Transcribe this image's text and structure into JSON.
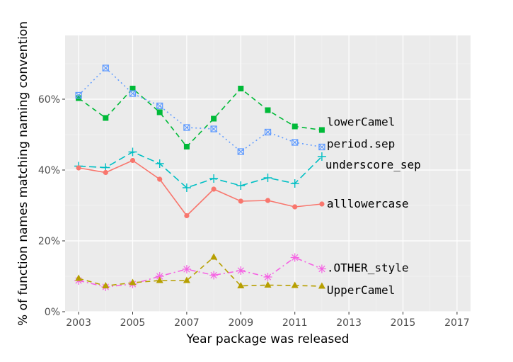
{
  "chart_data": {
    "type": "line",
    "title": "",
    "xlabel": "Year package was released",
    "ylabel": "% of function names matching naming convention",
    "xlim": [
      2002.5,
      2017.5
    ],
    "ylim": [
      0,
      78
    ],
    "x_ticks": [
      2003,
      2005,
      2007,
      2009,
      2011,
      2013,
      2015,
      2017
    ],
    "x_tick_labels": [
      "2003",
      "2005",
      "2007",
      "2009",
      "2011",
      "2013",
      "2015",
      "2017"
    ],
    "y_ticks": [
      0,
      20,
      40,
      60
    ],
    "y_tick_labels": [
      "0%",
      "20%",
      "40%",
      "60%"
    ],
    "grid": true,
    "legend": "direct labels at line ends",
    "x": [
      2003,
      2004,
      2005,
      2006,
      2007,
      2008,
      2009,
      2010,
      2011,
      2012
    ],
    "series": [
      {
        "name": "lowerCamel",
        "color": "#00ba38",
        "dash": "dashed",
        "marker": "square",
        "values": [
          60.3,
          54.7,
          63.0,
          56.3,
          46.6,
          54.5,
          63.0,
          56.9,
          52.3,
          51.3
        ]
      },
      {
        "name": "period.sep",
        "color": "#619cff",
        "dash": "dotted",
        "marker": "boxed-x",
        "values": [
          61.1,
          68.8,
          61.6,
          58.1,
          52.0,
          51.6,
          45.2,
          50.7,
          47.8,
          46.5
        ]
      },
      {
        "name": "underscore_sep",
        "color": "#00bfc4",
        "dash": "longdash",
        "marker": "plus",
        "values": [
          41.1,
          40.7,
          45.1,
          41.8,
          35.0,
          37.6,
          35.6,
          37.8,
          36.2,
          43.8
        ]
      },
      {
        "name": "alllowercase",
        "color": "#f8766d",
        "dash": "solid",
        "marker": "circle",
        "values": [
          40.6,
          39.3,
          42.7,
          37.4,
          27.1,
          34.6,
          31.2,
          31.4,
          29.6,
          30.4
        ]
      },
      {
        "name": ".OTHER_style",
        "color": "#f564e3",
        "dash": "dashdot",
        "marker": "asterisk",
        "values": [
          8.8,
          7.0,
          7.8,
          10.0,
          12.0,
          10.3,
          11.6,
          9.8,
          15.3,
          12.1
        ]
      },
      {
        "name": "UpperCamel",
        "color": "#b79f00",
        "dash": "dashed",
        "marker": "triangle",
        "values": [
          9.4,
          7.3,
          8.2,
          8.8,
          8.8,
          15.4,
          7.3,
          7.5,
          7.4,
          7.2
        ]
      }
    ]
  }
}
